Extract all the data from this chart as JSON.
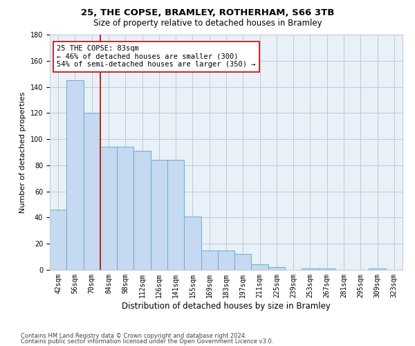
{
  "title": "25, THE COPSE, BRAMLEY, ROTHERHAM, S66 3TB",
  "subtitle": "Size of property relative to detached houses in Bramley",
  "xlabel": "Distribution of detached houses by size in Bramley",
  "ylabel": "Number of detached properties",
  "footnote1": "Contains HM Land Registry data © Crown copyright and database right 2024.",
  "footnote2": "Contains public sector information licensed under the Open Government Licence v3.0.",
  "bar_labels": [
    "42sqm",
    "56sqm",
    "70sqm",
    "84sqm",
    "98sqm",
    "112sqm",
    "126sqm",
    "141sqm",
    "155sqm",
    "169sqm",
    "183sqm",
    "197sqm",
    "211sqm",
    "225sqm",
    "239sqm",
    "253sqm",
    "267sqm",
    "281sqm",
    "295sqm",
    "309sqm",
    "323sqm"
  ],
  "bar_values": [
    46,
    145,
    120,
    94,
    94,
    91,
    84,
    84,
    41,
    15,
    15,
    12,
    4,
    2,
    0,
    1,
    1,
    0,
    0,
    1,
    0
  ],
  "bar_color": "#c5d9f0",
  "bar_edge_color": "#6aaad4",
  "vline_x": 2.5,
  "vline_color": "#cc0000",
  "ylim": [
    0,
    180
  ],
  "yticks": [
    0,
    20,
    40,
    60,
    80,
    100,
    120,
    140,
    160,
    180
  ],
  "annotation_text": "25 THE COPSE: 83sqm\n← 46% of detached houses are smaller (300)\n54% of semi-detached houses are larger (350) →",
  "title_fontsize": 9.5,
  "subtitle_fontsize": 8.5,
  "ylabel_fontsize": 8,
  "xlabel_fontsize": 8.5,
  "tick_fontsize": 7,
  "annotation_fontsize": 7.5,
  "footnote_fontsize": 6,
  "background_color": "#ffffff",
  "plot_bg_color": "#e8f0f8",
  "grid_color": "#c0c8d8"
}
